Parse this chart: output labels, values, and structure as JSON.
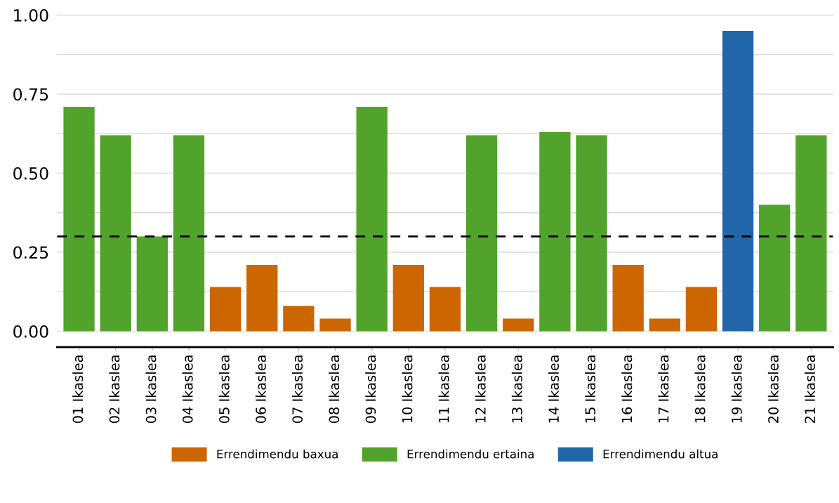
{
  "chart_data": {
    "type": "bar",
    "stacked": true,
    "categories": [
      "01 Ikaslea",
      "02 Ikaslea",
      "03 Ikaslea",
      "04 Ikaslea",
      "05 Ikaslea",
      "06 Ikaslea",
      "07 Ikaslea",
      "08 Ikaslea",
      "09 Ikaslea",
      "10 Ikaslea",
      "11 Ikaslea",
      "12 Ikaslea",
      "13 Ikaslea",
      "14 Ikaslea",
      "15 Ikaslea",
      "16 Ikaslea",
      "17 Ikaslea",
      "18 Ikaslea",
      "19 Ikaslea",
      "20 Ikaslea",
      "21 Ikaslea"
    ],
    "series": [
      {
        "name": "Errendimendu baxua",
        "color": "#cc6600",
        "values": [
          null,
          null,
          null,
          null,
          0.14,
          0.21,
          0.08,
          0.04,
          null,
          0.21,
          0.14,
          null,
          0.04,
          null,
          null,
          0.21,
          0.04,
          0.14,
          null,
          null,
          null
        ]
      },
      {
        "name": "Errendimendu ertaina",
        "color": "#52a32c",
        "values": [
          0.71,
          0.62,
          0.3,
          0.62,
          null,
          null,
          null,
          null,
          0.71,
          null,
          null,
          0.62,
          null,
          0.63,
          0.62,
          null,
          null,
          null,
          null,
          0.4,
          0.62
        ]
      },
      {
        "name": "Errendimendu altua",
        "color": "#2266aa",
        "values": [
          null,
          null,
          null,
          null,
          null,
          null,
          null,
          null,
          null,
          null,
          null,
          null,
          null,
          null,
          null,
          null,
          null,
          null,
          0.95,
          null,
          null
        ]
      }
    ],
    "ylim": [
      -0.05,
      1
    ],
    "yticks": [
      {
        "value": 0,
        "label": "0.00"
      },
      {
        "value": 0.125,
        "label": null
      },
      {
        "value": 0.25,
        "label": "0.25"
      },
      {
        "value": 0.375,
        "label": null
      },
      {
        "value": 0.5,
        "label": "0.50"
      },
      {
        "value": 0.625,
        "label": null
      },
      {
        "value": 0.75,
        "label": "0.75"
      },
      {
        "value": 0.875,
        "label": null
      },
      {
        "value": 1,
        "label": "1.00"
      }
    ],
    "ref_lines": [
      {
        "axis": "y",
        "value": 0.3,
        "color": "#000000",
        "line_style": "dashed"
      }
    ],
    "grid": "y",
    "legend": "bottom"
  }
}
